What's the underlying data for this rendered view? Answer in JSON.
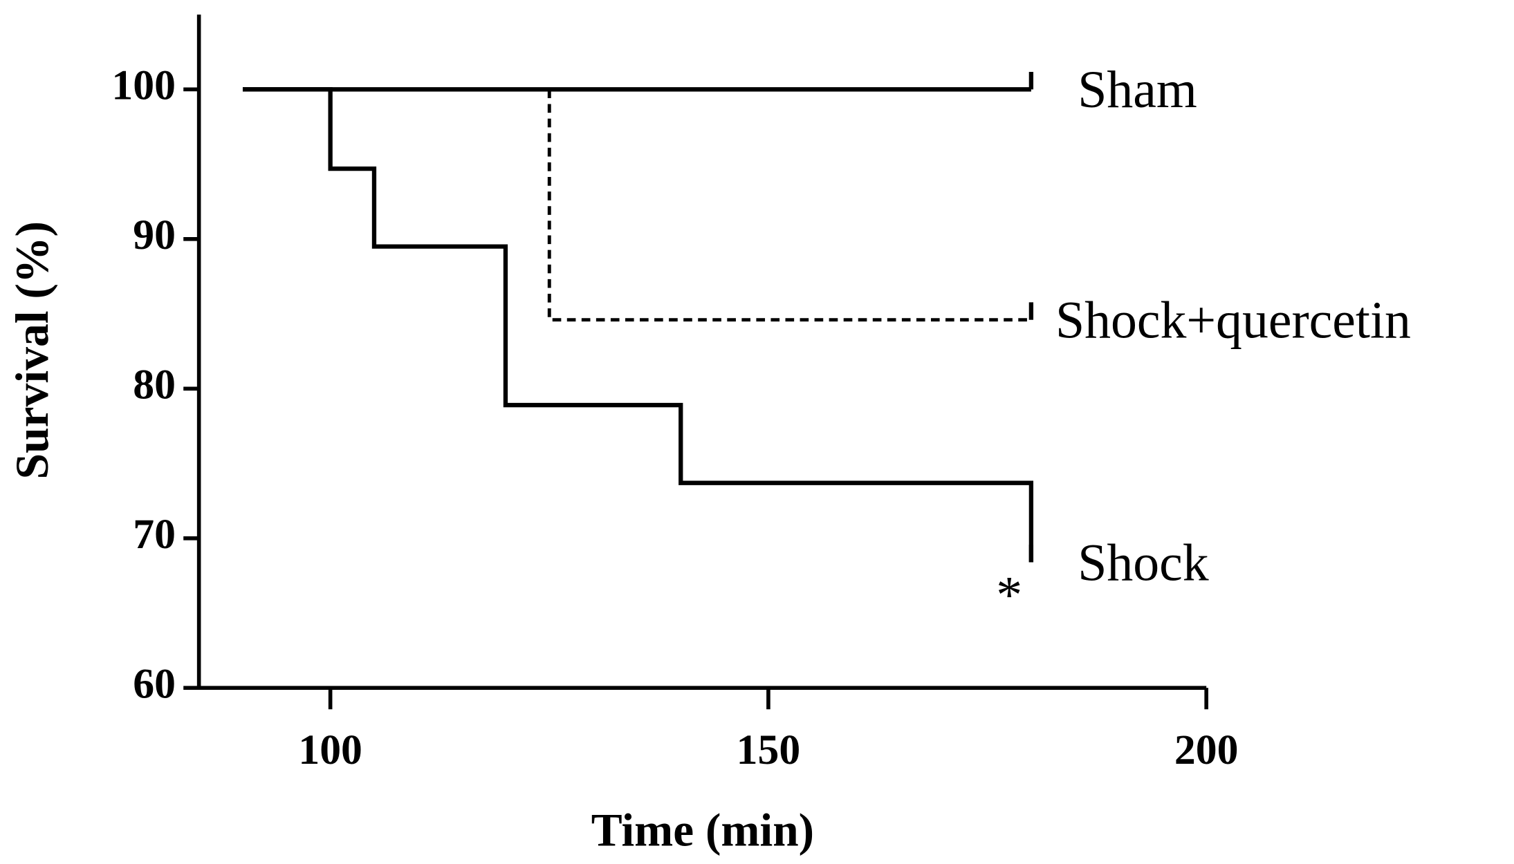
{
  "chart_data": {
    "type": "step",
    "x_label": "Time (min)",
    "y_label": "Survival (%)",
    "xlim": [
      85,
      200
    ],
    "xticks": [
      100,
      150,
      200
    ],
    "ylim": [
      60,
      105
    ],
    "yticks": [
      60,
      70,
      80,
      90,
      100
    ],
    "series": [
      {
        "name": "Sham",
        "color": "#000000",
        "dashed": false,
        "x": [
          90,
          180
        ],
        "values": [
          100,
          100
        ]
      },
      {
        "name": "Shock+quercetin",
        "color": "#000000",
        "dashed": true,
        "x": [
          125,
          125,
          180
        ],
        "values": [
          100,
          84.6,
          84.6
        ]
      },
      {
        "name": "Shock",
        "color": "#000000",
        "dashed": false,
        "x": [
          90,
          100,
          105,
          120,
          140,
          180
        ],
        "values": [
          100,
          94.7,
          89.5,
          78.9,
          73.7,
          68.4
        ]
      }
    ],
    "annotations": [
      {
        "text": "*",
        "x": 177.5,
        "y": 66.5
      }
    ]
  }
}
